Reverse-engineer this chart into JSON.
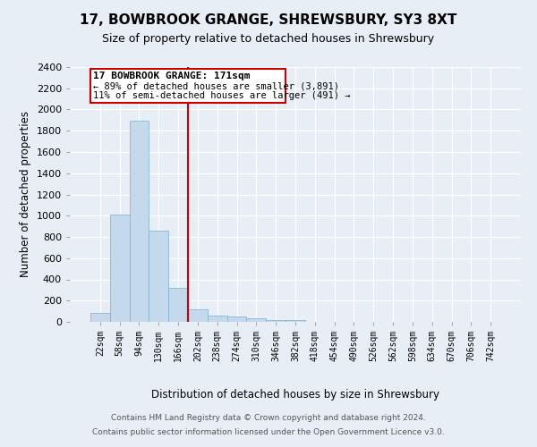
{
  "title": "17, BOWBROOK GRANGE, SHREWSBURY, SY3 8XT",
  "subtitle": "Size of property relative to detached houses in Shrewsbury",
  "xlabel": "Distribution of detached houses by size in Shrewsbury",
  "ylabel": "Number of detached properties",
  "footer1": "Contains HM Land Registry data © Crown copyright and database right 2024.",
  "footer2": "Contains public sector information licensed under the Open Government Licence v3.0.",
  "bin_labels": [
    "22sqm",
    "58sqm",
    "94sqm",
    "130sqm",
    "166sqm",
    "202sqm",
    "238sqm",
    "274sqm",
    "310sqm",
    "346sqm",
    "382sqm",
    "418sqm",
    "454sqm",
    "490sqm",
    "526sqm",
    "562sqm",
    "598sqm",
    "634sqm",
    "670sqm",
    "706sqm",
    "742sqm"
  ],
  "bar_values": [
    88,
    1012,
    1891,
    858,
    316,
    114,
    57,
    47,
    32,
    20,
    20,
    0,
    0,
    0,
    0,
    0,
    0,
    0,
    0,
    0,
    0
  ],
  "bar_color": "#c5d9ed",
  "bar_edge_color": "#7aafd4",
  "ylim": [
    0,
    2400
  ],
  "yticks": [
    0,
    200,
    400,
    600,
    800,
    1000,
    1200,
    1400,
    1600,
    1800,
    2000,
    2200,
    2400
  ],
  "vline_x": 4.5,
  "vline_color": "#cc0000",
  "annotation_title": "17 BOWBROOK GRANGE: 171sqm",
  "annotation_line1": "← 89% of detached houses are smaller (3,891)",
  "annotation_line2": "11% of semi-detached houses are larger (491) →",
  "bg_color": "#e8eef5",
  "plot_bg_color": "#e8eef5",
  "title_fontsize": 11,
  "subtitle_fontsize": 9
}
